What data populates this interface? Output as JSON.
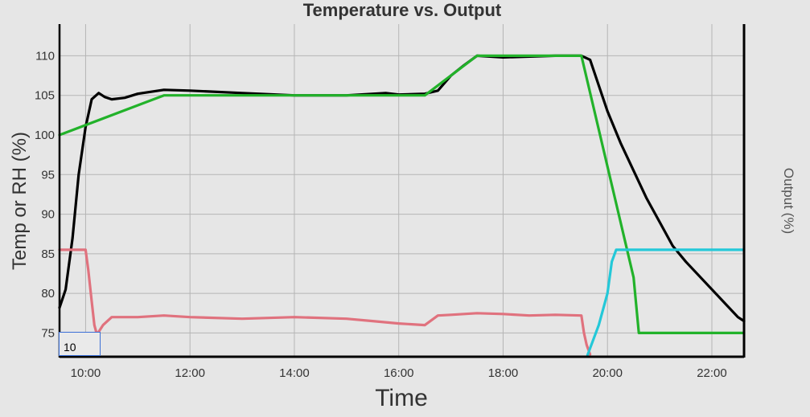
{
  "chart_data": {
    "type": "line",
    "title": "Temperature vs. Output",
    "xlabel": "Time",
    "ylabel": "Temp or RH (%)",
    "y2label": "Output (%)",
    "xlim": [
      "9:30",
      "22:37"
    ],
    "ylim": [
      72,
      114
    ],
    "xticks": [
      "10:00",
      "12:00",
      "14:00",
      "16:00",
      "18:00",
      "20:00",
      "22:00"
    ],
    "yticks": [
      75,
      80,
      85,
      90,
      95,
      100,
      105,
      110
    ],
    "grid": true,
    "series": [
      {
        "color": "#000000",
        "x": [
          "9:30",
          "9:37",
          "9:45",
          "9:52",
          "10:00",
          "10:07",
          "10:15",
          "10:22",
          "10:30",
          "10:45",
          "11:00",
          "11:30",
          "12:00",
          "13:00",
          "14:00",
          "15:00",
          "15:45",
          "16:00",
          "16:30",
          "16:45",
          "17:00",
          "17:15",
          "17:30",
          "18:00",
          "19:00",
          "19:30",
          "19:40",
          "20:00",
          "20:15",
          "20:30",
          "20:45",
          "21:00",
          "21:15",
          "21:30",
          "22:00",
          "22:30",
          "22:37"
        ],
        "values": [
          78.2,
          80.5,
          87,
          95,
          101,
          104.5,
          105.3,
          104.8,
          104.5,
          104.7,
          105.2,
          105.7,
          105.6,
          105.3,
          105,
          105,
          105.3,
          105.1,
          105.2,
          105.6,
          107.5,
          108.8,
          110,
          109.8,
          110,
          110,
          109.5,
          103,
          99,
          95.5,
          92,
          89,
          86,
          84,
          80.5,
          77,
          76.5
        ]
      },
      {
        "color": "#22b22a",
        "x": [
          "9:30",
          "11:30",
          "16:30",
          "17:30",
          "19:30",
          "20:30",
          "20:36",
          "22:37"
        ],
        "values": [
          100,
          105,
          105,
          110,
          110,
          82,
          75,
          75
        ]
      },
      {
        "color": "#e0727e",
        "x": [
          "9:30",
          "10:00",
          "10:03",
          "10:07",
          "10:10",
          "10:13",
          "10:20",
          "10:30",
          "11:00",
          "11:30",
          "12:00",
          "13:00",
          "14:00",
          "15:00",
          "15:30",
          "16:00",
          "16:30",
          "16:45",
          "17:00",
          "17:30",
          "18:00",
          "18:30",
          "19:00",
          "19:30",
          "19:33",
          "19:36",
          "19:40"
        ],
        "values": [
          85.5,
          85.5,
          83,
          79,
          76,
          74.8,
          76,
          77,
          77,
          77.2,
          77,
          76.8,
          77,
          76.8,
          76.5,
          76.2,
          76,
          77.2,
          77.3,
          77.5,
          77.4,
          77.2,
          77.3,
          77.2,
          75,
          73.5,
          72.3
        ]
      },
      {
        "color": "#24c8d8",
        "x": [
          "19:37",
          "19:50",
          "20:00",
          "20:05",
          "20:10",
          "20:15",
          "22:37"
        ],
        "values": [
          72.2,
          76,
          80,
          84,
          85.5,
          85.5,
          85.5
        ]
      }
    ]
  },
  "input": {
    "value": "10"
  }
}
